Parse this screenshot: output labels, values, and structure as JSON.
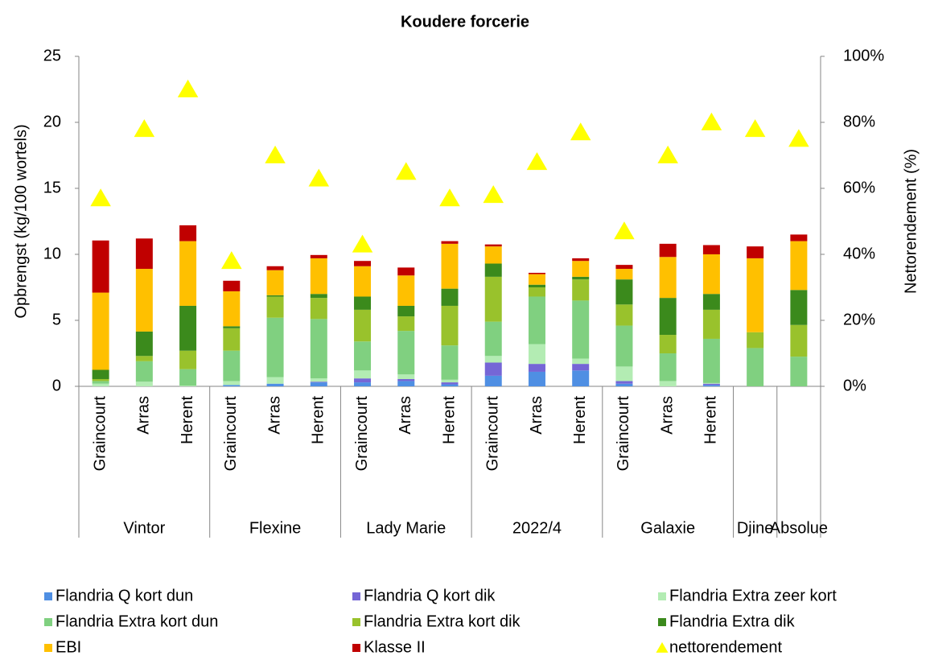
{
  "chart_data": {
    "type": "bar",
    "stacked": true,
    "title": "Koudere forcerie",
    "y_label": "Opbrengst (kg/100 wortels)",
    "y2_label": "Nettorendement (%)",
    "categories": [
      "Graincourt",
      "Arras",
      "Herent",
      "Graincourt",
      "Arras",
      "Herent",
      "Graincourt",
      "Arras",
      "Herent",
      "Graincourt",
      "Arras",
      "Herent",
      "Graincourt",
      "Arras",
      "Herent",
      null,
      null
    ],
    "groups": [
      {
        "label": "Vintor",
        "size": 3
      },
      {
        "label": "Flexine",
        "size": 3
      },
      {
        "label": "Lady Marie",
        "size": 3
      },
      {
        "label": "2022/4",
        "size": 3
      },
      {
        "label": "Galaxie",
        "size": 3
      },
      {
        "label": "Djine",
        "size": 1
      },
      {
        "label": "Absolue",
        "size": 1
      }
    ],
    "ylim": [
      0,
      25
    ],
    "yticks": [
      0,
      5,
      10,
      15,
      20,
      25
    ],
    "y2lim": [
      0,
      100
    ],
    "y2ticks": [
      {
        "value": 0,
        "label": "0%"
      },
      {
        "value": 20,
        "label": "20%"
      },
      {
        "value": 40,
        "label": "40%"
      },
      {
        "value": 60,
        "label": "60%"
      },
      {
        "value": 80,
        "label": "80%"
      },
      {
        "value": 100,
        "label": "100%"
      }
    ],
    "legend": "bottom",
    "series": [
      {
        "name": "Flandria Q kort dun",
        "color": "#4f8fe3",
        "values": [
          0,
          0,
          0,
          0.1,
          0.2,
          0.3,
          0.3,
          0.4,
          0.15,
          0.8,
          1.1,
          1.2,
          0.2,
          0,
          0.1,
          0,
          0
        ]
      },
      {
        "name": "Flandria Q kort dik",
        "color": "#7566d6",
        "values": [
          0,
          0,
          0,
          0,
          0,
          0.05,
          0.3,
          0.15,
          0.15,
          1.0,
          0.6,
          0.5,
          0.2,
          0,
          0.1,
          0,
          0
        ]
      },
      {
        "name": "Flandria Extra zeer kort",
        "color": "#b3ecb3",
        "values": [
          0.2,
          0.35,
          0.05,
          0.3,
          0.5,
          0.25,
          0.6,
          0.35,
          0.2,
          0.5,
          1.5,
          0.4,
          1.1,
          0.4,
          0.05,
          0,
          0
        ]
      },
      {
        "name": "Flandria Extra kort dun",
        "color": "#80d080",
        "values": [
          0.2,
          1.55,
          1.25,
          2.3,
          4.5,
          4.5,
          2.2,
          3.3,
          2.6,
          2.6,
          3.6,
          4.4,
          3.1,
          2.1,
          3.35,
          2.9,
          2.25
        ]
      },
      {
        "name": "Flandria Extra kort dik",
        "color": "#99c22c",
        "values": [
          0.15,
          0.4,
          1.4,
          1.7,
          1.6,
          1.6,
          2.4,
          1.1,
          3.0,
          3.4,
          0.7,
          1.6,
          1.6,
          1.4,
          2.2,
          1.2,
          2.4
        ]
      },
      {
        "name": "Flandria Extra dik",
        "color": "#3b8a1c",
        "values": [
          0.7,
          1.85,
          3.4,
          0.15,
          0.1,
          0.3,
          1.0,
          0.8,
          1.3,
          1.0,
          0.2,
          0.2,
          1.9,
          2.8,
          1.2,
          0,
          2.65
        ]
      },
      {
        "name": "EBI",
        "color": "#ffc000",
        "values": [
          5.85,
          4.75,
          4.9,
          2.65,
          1.9,
          2.7,
          2.3,
          2.3,
          3.4,
          1.3,
          0.8,
          1.2,
          0.8,
          3.1,
          3.0,
          5.6,
          3.7
        ]
      },
      {
        "name": "Klasse II",
        "color": "#c00000",
        "values": [
          3.95,
          2.3,
          1.2,
          0.8,
          0.3,
          0.25,
          0.4,
          0.6,
          0.2,
          0.15,
          0.1,
          0.2,
          0.3,
          1.0,
          0.7,
          0.9,
          0.5
        ]
      },
      {
        "name": "nettorendement",
        "color": "#ffff00",
        "axis": "y2",
        "marker": "triangle",
        "values": [
          57,
          78,
          90,
          38,
          70,
          63,
          43,
          65,
          57,
          58,
          68,
          77,
          47,
          70,
          80,
          78,
          75
        ]
      }
    ]
  }
}
